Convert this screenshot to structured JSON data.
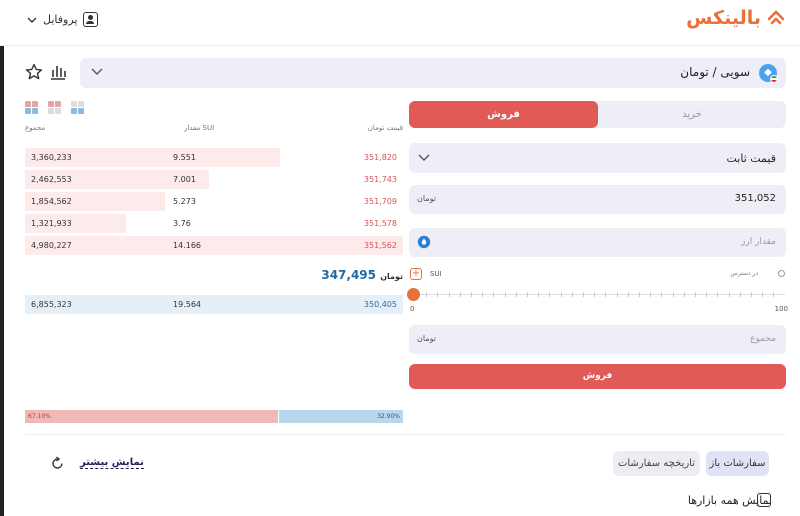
{
  "header": {
    "brand": "بالینکس",
    "profile_label": "پروفایل"
  },
  "market": {
    "pair": "سویی / تومان"
  },
  "orderbook": {
    "col_price": "قیمت",
    "col_amount": "مقدار SUI",
    "col_total": "مجموع",
    "asks": [
      {
        "price": "351,820",
        "amount": "9.551",
        "total": "3,360,233",
        "depth": 0.67
      },
      {
        "price": "351,743",
        "amount": "7.001",
        "total": "2,462,553",
        "depth": 0.49
      },
      {
        "price": "351,709",
        "amount": "5.273",
        "total": "1,854,562",
        "depth": 0.37
      },
      {
        "price": "351,578",
        "amount": "3.76",
        "total": "1,321,933",
        "depth": 0.27
      },
      {
        "price": "351,562",
        "amount": "14.166",
        "total": "4,980,227",
        "depth": 1.0
      }
    ],
    "last_price": "347,495",
    "bids": [
      {
        "price": "350,405",
        "amount": "19.564",
        "total": "6,855,323",
        "depth": 1.0
      }
    ],
    "sell_ratio": "67.10%",
    "buy_ratio": "32.90%"
  },
  "form": {
    "tab_buy": "خرید",
    "tab_sell": "فروش",
    "order_type": "قیمت ثابت",
    "price_value": "351,052",
    "amount_placeholder": "مقدار ارز",
    "available_label": "در دسترس",
    "amount_unit": "SUI",
    "slider_min": "0",
    "slider_max": "100",
    "slider_value": 0,
    "total_placeholder": "مجموع",
    "submit_label": "فروش",
    "toman_symbol": "تومان"
  },
  "orders": {
    "tab_open": "سفارشات باز",
    "tab_history": "تاریخچه سفارشات",
    "show_more": "نمایش بیشتر",
    "show_all_markets": "نمایش همه بازارها"
  },
  "colors": {
    "accent": "#e8703a",
    "sell": "#e05a57",
    "buy": "#2d6fa8"
  }
}
